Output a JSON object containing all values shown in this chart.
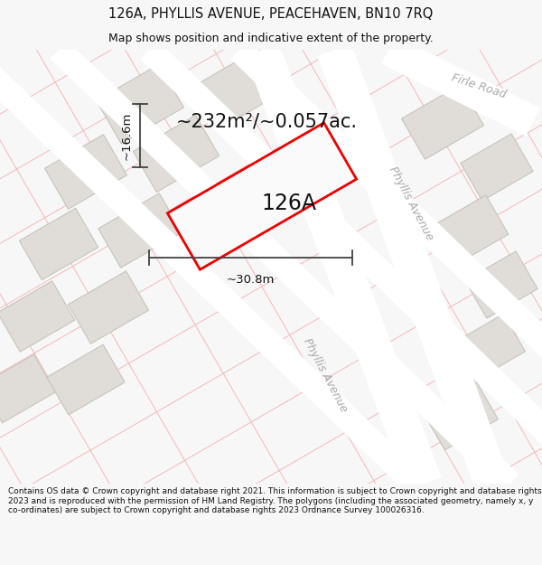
{
  "title_line1": "126A, PHYLLIS AVENUE, PEACEHAVEN, BN10 7RQ",
  "title_line2": "Map shows position and indicative extent of the property.",
  "area_text": "~232m²/~0.057ac.",
  "label_126A": "126A",
  "dim_width": "~30.8m",
  "dim_height": "~16.6m",
  "road_label_phyllis_upper": "Phyllis Avenue",
  "road_label_phyllis_lower": "Phyllis Avenue",
  "road_label_firle": "Firle Road",
  "footer_text": "Contains OS data © Crown copyright and database right 2021. This information is subject to Crown copyright and database rights 2023 and is reproduced with the permission of HM Land Registry. The polygons (including the associated geometry, namely x, y co-ordinates) are subject to Crown copyright and database rights 2023 Ordnance Survey 100026316.",
  "bg_color": "#f7f7f7",
  "map_bg": "#f7f7f7",
  "grid_color": "#f5b8b8",
  "road_color": "#ffffff",
  "building_fill": "#e0ddd8",
  "building_edge": "#c8c4bc",
  "plot_fill": "#ffffff",
  "plot_edge": "#ee0000",
  "dim_line_color": "#444444",
  "text_color": "#111111",
  "road_text_color": "#aaaaaa",
  "title_fontsize": 10.5,
  "subtitle_fontsize": 9.0,
  "area_fontsize": 15,
  "label_fontsize": 17,
  "dim_fontsize": 9.5,
  "road_fontsize": 9,
  "footer_fontsize": 6.5
}
